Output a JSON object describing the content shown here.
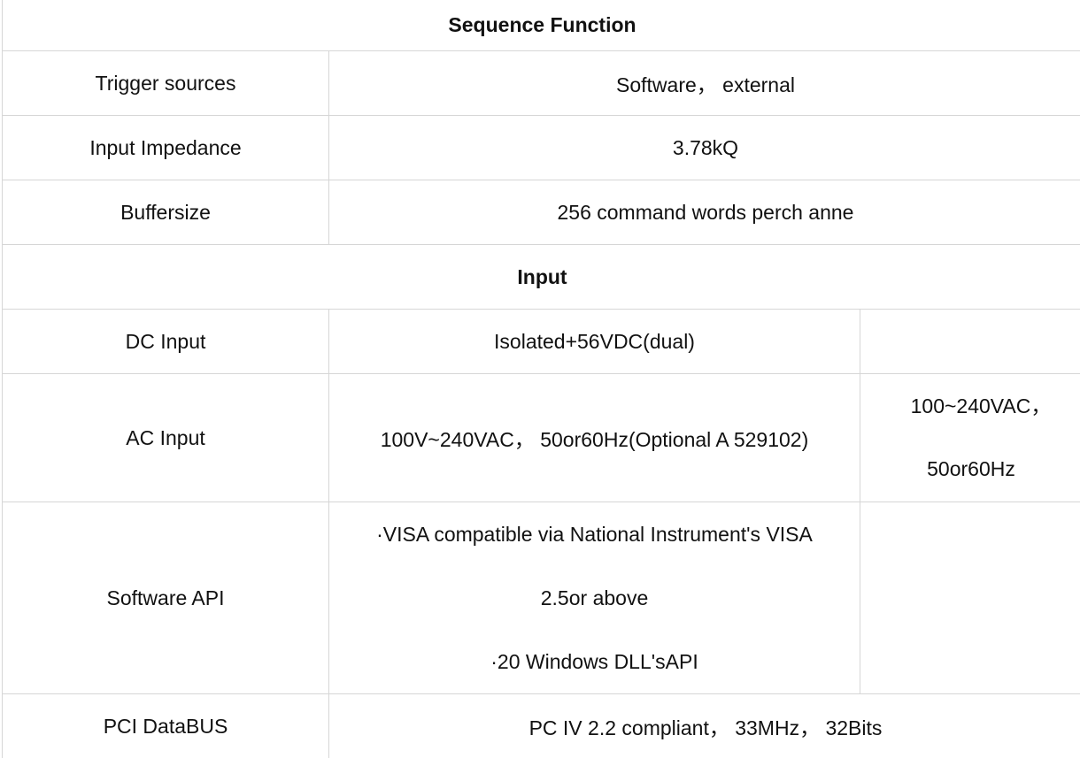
{
  "sections": [
    {
      "title": "Sequence Function"
    },
    {
      "title": "Input"
    }
  ],
  "rows": [
    {
      "label": "Trigger sources",
      "value": "Software， external"
    },
    {
      "label": "Input Impedance",
      "value": "3.78kQ"
    },
    {
      "label": "Buffersize",
      "value": "256 command words perch anne"
    },
    {
      "label": "DC Input",
      "value": "Isolated+56VDC(dual)",
      "extra": ""
    },
    {
      "label": "AC Input",
      "value": "100V~240VAC， 50or60Hz(Optional A 529102)",
      "extra_lines": [
        "100~240VAC，",
        "50or60Hz"
      ]
    },
    {
      "label": "Software API",
      "value_lines": [
        "·VISA compatible via National Instrument's VISA",
        "2.5or above",
        "·20 Windows DLL'sAPI"
      ],
      "extra": ""
    },
    {
      "label": "PCI DataBUS",
      "value": "PC IV 2.2 compliant， 33MHz， 32Bits"
    }
  ]
}
